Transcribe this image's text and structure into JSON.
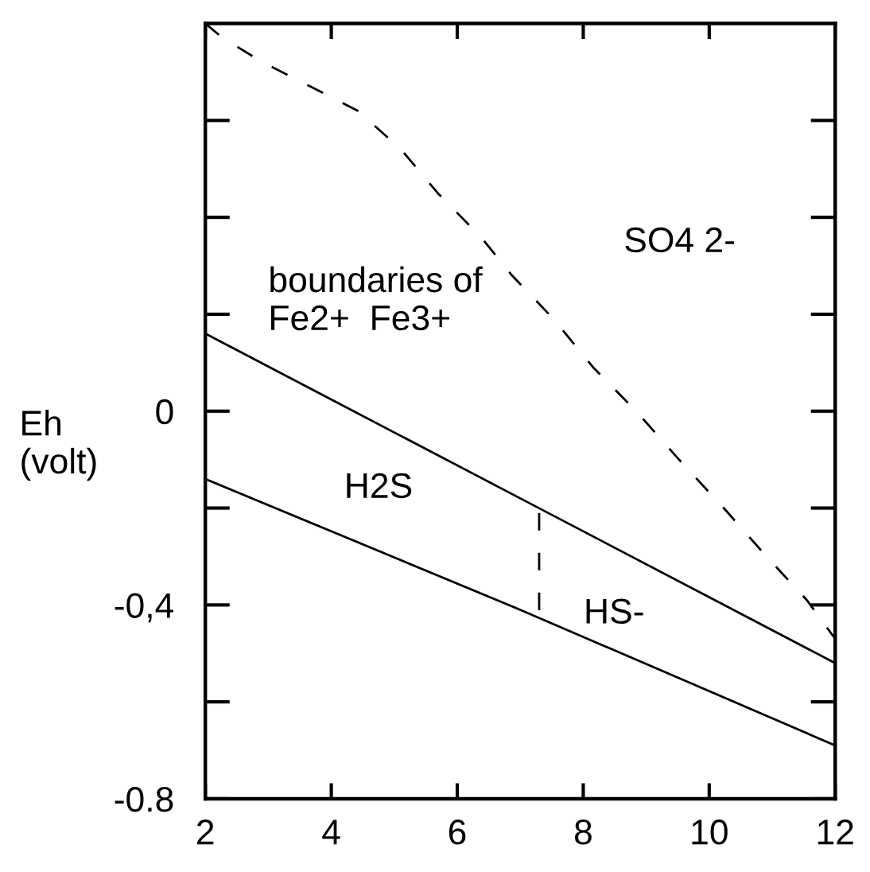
{
  "chart_data": {
    "type": "line",
    "ylabel": "Eh\n(volt)",
    "xlim": [
      2,
      12
    ],
    "xticks": [
      2,
      4,
      6,
      8,
      10,
      12
    ],
    "ylim": [
      -0.8,
      0.8
    ],
    "yticks": [
      {
        "value": -0.8,
        "label": "-0.8"
      },
      {
        "value": -0.6,
        "label": null
      },
      {
        "value": -0.4,
        "label": "-0,4"
      },
      {
        "value": -0.2,
        "label": null
      },
      0,
      {
        "value": 0.2,
        "label": null
      },
      {
        "value": 0.4,
        "label": null
      },
      {
        "value": 0.6,
        "label": null
      }
    ],
    "series": [
      {
        "color": "#000000",
        "line_style": "solid",
        "x": [
          2,
          7,
          12
        ],
        "values": [
          0.16,
          -0.18,
          -0.52
        ]
      },
      {
        "color": "#000000",
        "line_style": "solid",
        "x": [
          2,
          7,
          12
        ],
        "values": [
          -0.14,
          -0.41,
          -0.69
        ]
      },
      {
        "color": "#000000",
        "line_style": "dashed",
        "x": [
          2,
          2.28,
          2.91,
          3.67,
          4.42,
          5.11,
          5.69,
          6.37,
          6.87,
          7.53,
          8.16,
          8.84,
          9.52,
          10.23,
          10.91,
          11.55,
          12
        ],
        "values": [
          0.8,
          0.77,
          0.72,
          0.67,
          0.62,
          0.54,
          0.45,
          0.36,
          0.28,
          0.19,
          0.09,
          0.0,
          -0.1,
          -0.2,
          -0.3,
          -0.39,
          -0.47
        ]
      },
      {
        "color": "#000000",
        "line_style": "dashed",
        "x": [
          7.3,
          7.3
        ],
        "values": [
          -0.21,
          -0.42
        ]
      }
    ],
    "annotations": [
      "SO4 2-",
      "boundaries of\nFe2+  Fe3+",
      "H2S",
      "HS-"
    ]
  }
}
